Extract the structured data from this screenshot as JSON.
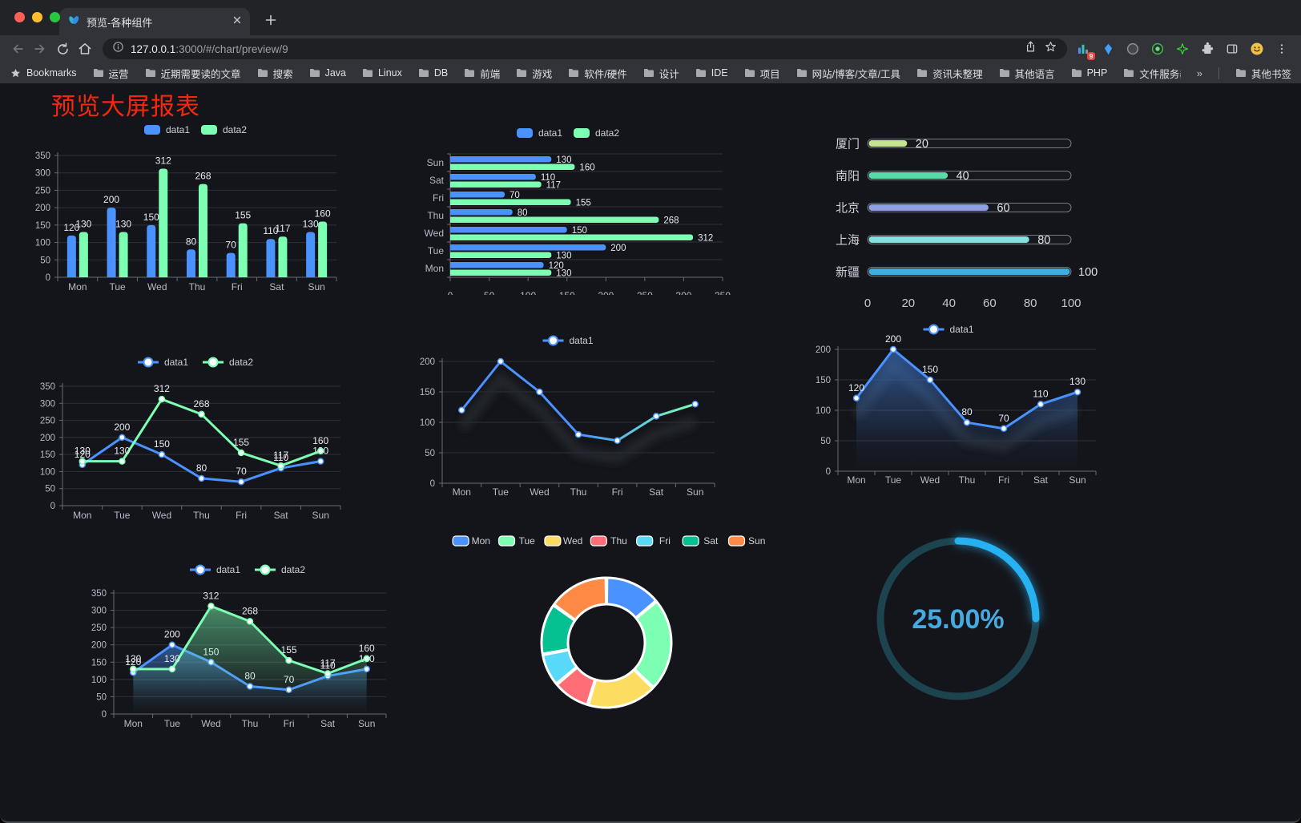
{
  "window": {
    "tab_title": "预览-各种组件",
    "url_host": "127.0.0.1",
    "url_rest": ":3000/#/chart/preview/9",
    "extension_badge": "9"
  },
  "bookmarks": {
    "label": "Bookmarks",
    "items": [
      "运营",
      "近期需要读的文章",
      "搜索",
      "Java",
      "Linux",
      "DB",
      "前端",
      "游戏",
      "软件/硬件",
      "设计",
      "IDE",
      "项目",
      "网站/博客/文章/工具",
      "资讯未整理",
      "其他语言",
      "PHP",
      "文件服务器"
    ],
    "overflow": "»",
    "other": "其他书签"
  },
  "page": {
    "title": "预览大屏报表",
    "title_color": "#f5270c",
    "background": "#14151a"
  },
  "chart_data": [
    {
      "id": "c-bar",
      "type": "bar",
      "title": "",
      "legend_position": "top",
      "grid": true,
      "categories": [
        "Mon",
        "Tue",
        "Wed",
        "Thu",
        "Fri",
        "Sat",
        "Sun"
      ],
      "series": [
        {
          "name": "data1",
          "color": "#4992ff",
          "values": [
            120,
            200,
            150,
            80,
            70,
            110,
            130
          ]
        },
        {
          "name": "data2",
          "color": "#7cffb2",
          "values": [
            130,
            130,
            312,
            268,
            155,
            117,
            160
          ]
        }
      ],
      "ylim": [
        0,
        350
      ],
      "ytick_step": 50,
      "labels": true
    },
    {
      "id": "c-hbar",
      "type": "bar-horizontal",
      "legend_position": "top",
      "grid": true,
      "categories": [
        "Mon",
        "Tue",
        "Wed",
        "Thu",
        "Fri",
        "Sat",
        "Sun"
      ],
      "category_display_order": "Sun at top, Mon at bottom",
      "series": [
        {
          "name": "data1",
          "color": "#4992ff",
          "values": [
            120,
            200,
            150,
            80,
            70,
            110,
            130
          ]
        },
        {
          "name": "data2",
          "color": "#7cffb2",
          "values": [
            130,
            130,
            312,
            268,
            155,
            117,
            160
          ]
        }
      ],
      "xlim": [
        0,
        350
      ],
      "xtick_step": 50,
      "labels": true
    },
    {
      "id": "c-prog",
      "type": "bar-horizontal",
      "variant": "progress",
      "max": 100,
      "ticks": [
        0,
        20,
        40,
        60,
        80,
        100
      ],
      "items": [
        {
          "label": "厦门",
          "value": 20,
          "color": "#c4e48f"
        },
        {
          "label": "南阳",
          "value": 40,
          "color": "#55dcab"
        },
        {
          "label": "北京",
          "value": 60,
          "color": "#8e9fe3"
        },
        {
          "label": "上海",
          "value": 80,
          "color": "#82e0de"
        },
        {
          "label": "新疆",
          "value": 100,
          "color": "#3aaede"
        }
      ]
    },
    {
      "id": "c-line",
      "type": "line",
      "legend_position": "top",
      "grid": true,
      "categories": [
        "Mon",
        "Tue",
        "Wed",
        "Thu",
        "Fri",
        "Sat",
        "Sun"
      ],
      "series": [
        {
          "name": "data1",
          "color": "#4992ff",
          "values": [
            120,
            200,
            150,
            80,
            70,
            110,
            130
          ]
        },
        {
          "name": "data2",
          "color": "#7cffb2",
          "values": [
            130,
            130,
            312,
            268,
            155,
            117,
            160
          ]
        }
      ],
      "ylim": [
        0,
        350
      ],
      "ytick_step": 50,
      "labels": true
    },
    {
      "id": "c-grad",
      "type": "line",
      "legend_position": "top",
      "grid": true,
      "shadow": true,
      "categories": [
        "Mon",
        "Tue",
        "Wed",
        "Thu",
        "Fri",
        "Sat",
        "Sun"
      ],
      "series": [
        {
          "name": "data1",
          "color": "#4992ff",
          "gradient": [
            "#4992ff",
            "#7cffb2"
          ],
          "values": [
            120,
            200,
            150,
            80,
            70,
            110,
            130
          ]
        }
      ],
      "ylim": [
        0,
        200
      ],
      "ytick_step": 50,
      "labels": false
    },
    {
      "id": "c-area",
      "type": "area",
      "legend_position": "top",
      "grid": true,
      "shadow": true,
      "categories": [
        "Mon",
        "Tue",
        "Wed",
        "Thu",
        "Fri",
        "Sat",
        "Sun"
      ],
      "series": [
        {
          "name": "data1",
          "color": "#4992ff",
          "area": true,
          "values": [
            120,
            200,
            150,
            80,
            70,
            110,
            130
          ]
        }
      ],
      "ylim": [
        0,
        200
      ],
      "ytick_step": 50,
      "labels": true
    },
    {
      "id": "c-area2",
      "type": "area",
      "legend_position": "top",
      "grid": true,
      "categories": [
        "Mon",
        "Tue",
        "Wed",
        "Thu",
        "Fri",
        "Sat",
        "Sun"
      ],
      "series": [
        {
          "name": "data1",
          "color": "#4992ff",
          "area": true,
          "values": [
            120,
            200,
            150,
            80,
            70,
            110,
            130
          ]
        },
        {
          "name": "data2",
          "color": "#7cffb2",
          "area": true,
          "values": [
            130,
            130,
            312,
            268,
            155,
            117,
            160
          ]
        }
      ],
      "ylim": [
        0,
        350
      ],
      "ytick_step": 50,
      "labels": true
    },
    {
      "id": "c-pie",
      "type": "pie",
      "legend_position": "top",
      "inner_radius_ratio": 0.59,
      "items": [
        {
          "label": "Mon",
          "value": 120,
          "color": "#4992ff"
        },
        {
          "label": "Tue",
          "value": 200,
          "color": "#7cffb2"
        },
        {
          "label": "Wed",
          "value": 150,
          "color": "#fddd60"
        },
        {
          "label": "Thu",
          "value": 80,
          "color": "#ff6e76"
        },
        {
          "label": "Fri",
          "value": 70,
          "color": "#58d9f9"
        },
        {
          "label": "Sat",
          "value": 110,
          "color": "#05c091"
        },
        {
          "label": "Sun",
          "value": 130,
          "color": "#ff8a45"
        }
      ]
    },
    {
      "id": "c-gauge",
      "type": "gauge",
      "value": 25,
      "label": "25.00%",
      "color": "#27b2f2",
      "track_color": "#1d434e",
      "text_color": "#45aae0"
    }
  ]
}
